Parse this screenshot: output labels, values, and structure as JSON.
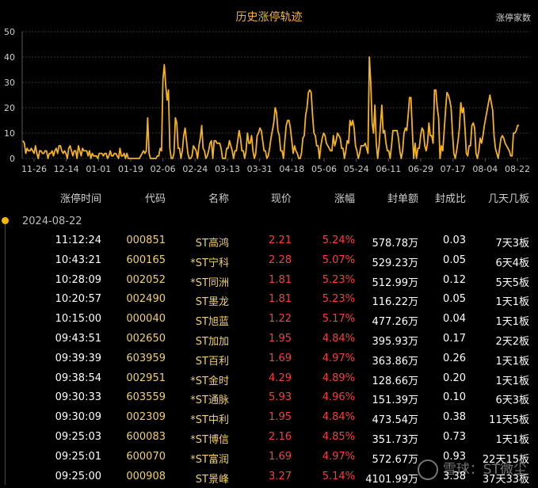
{
  "chart": {
    "title": "历史涨停轨迹",
    "legend_label": "涨停家数"
  },
  "chart_data": {
    "type": "line",
    "title": "历史涨停轨迹",
    "ylim": [
      0,
      50
    ],
    "y_ticks": [
      0,
      10,
      20,
      30,
      40,
      50
    ],
    "x_tick_labels": [
      "11-26",
      "12-14",
      "01-01",
      "01-19",
      "02-06",
      "02-24",
      "03-13",
      "03-31",
      "04-18",
      "05-06",
      "05-24",
      "06-11",
      "06-29",
      "07-17",
      "08-04",
      "08-22"
    ],
    "series": [
      {
        "values": [
          7,
          6,
          2,
          4,
          3,
          3,
          4,
          3,
          2,
          5,
          2,
          0,
          3,
          3,
          2,
          2,
          3,
          3,
          0,
          2,
          2,
          3,
          1,
          3,
          4,
          2,
          5,
          5,
          3,
          2,
          3,
          2,
          0,
          4,
          5,
          3,
          1,
          3,
          3,
          0,
          5,
          3,
          1,
          4,
          3,
          3,
          3,
          1,
          3,
          0,
          2,
          1,
          1,
          1,
          0,
          2,
          2,
          2,
          1,
          2,
          2,
          0,
          1,
          3,
          1,
          1,
          2,
          2,
          1,
          0,
          4,
          1,
          1,
          2,
          0,
          2,
          0,
          0,
          0,
          0,
          0,
          0,
          0,
          0,
          0,
          1,
          2,
          3,
          2,
          3,
          16,
          2,
          0,
          0,
          0,
          0,
          0,
          1,
          1,
          4,
          3,
          31,
          37,
          29,
          23,
          27,
          4,
          0,
          0,
          2,
          16,
          14,
          4,
          4,
          0,
          3,
          9,
          12,
          7,
          2,
          0,
          0,
          1,
          5,
          4,
          3,
          0,
          5,
          8,
          13,
          4,
          3,
          0,
          1,
          3,
          6,
          7,
          0,
          7,
          7,
          6,
          6,
          6,
          4,
          0,
          0,
          0,
          4,
          4,
          7,
          5,
          3,
          0,
          3,
          3,
          7,
          11,
          8,
          3,
          3,
          0,
          3,
          10,
          6,
          6,
          9,
          3,
          0,
          2,
          9,
          10,
          12,
          11,
          7,
          3,
          3,
          0,
          1,
          4,
          8,
          11,
          14,
          20,
          18,
          11,
          9,
          3,
          3,
          0,
          7,
          13,
          15,
          15,
          12,
          7,
          2,
          5,
          3,
          2,
          0,
          0,
          2,
          8,
          9,
          17,
          20,
          26,
          27,
          26,
          17,
          10,
          9,
          5,
          5,
          0,
          5,
          8,
          10,
          9,
          6,
          5,
          4,
          3,
          3,
          9,
          5,
          7,
          10,
          9,
          8,
          4,
          4,
          0,
          3,
          7,
          6,
          15,
          13,
          15,
          12,
          5,
          3,
          0,
          2,
          5,
          5,
          5,
          6,
          4,
          2,
          40,
          30,
          14,
          10,
          21,
          6,
          0,
          5,
          13,
          21,
          10,
          11,
          6,
          3,
          3,
          0,
          5,
          11,
          11,
          11,
          11,
          8,
          3,
          0,
          3,
          10,
          12,
          11,
          17,
          24,
          24,
          11,
          0,
          6,
          0,
          4,
          4,
          9,
          12,
          11,
          5,
          3,
          6,
          14,
          9,
          9,
          6,
          27,
          27,
          20,
          16,
          0,
          5,
          3,
          11,
          19,
          26,
          25,
          23,
          20,
          10,
          2,
          0,
          3,
          7,
          12,
          22,
          18,
          20,
          12,
          2,
          1,
          5,
          5,
          13,
          14,
          12,
          2,
          0,
          3,
          8,
          6,
          9,
          13,
          16,
          19,
          22,
          25,
          22,
          19,
          9,
          4,
          2,
          0,
          4,
          8,
          9,
          8,
          6,
          5,
          4,
          3,
          1,
          1,
          10,
          10,
          11,
          13,
          13
        ]
      }
    ],
    "grid": true,
    "colors": {
      "line": "#f5b21b",
      "grid": "#3a3a3a",
      "axis_text": "#cfcfcf"
    }
  },
  "table": {
    "headers": [
      "涨停时间",
      "代码",
      "名称",
      "现价",
      "涨幅",
      "封单额",
      "封成比",
      "几天几板"
    ],
    "date": "2024-08-22",
    "rows": [
      {
        "time": "11:12:24",
        "code": "000851",
        "name": "ST高鸿",
        "price": "2.21",
        "pct": "5.24%",
        "amount": "578.78万",
        "ratio": "0.03",
        "streak": "7天3板"
      },
      {
        "time": "10:43:21",
        "code": "600165",
        "name": "*ST宁科",
        "price": "2.28",
        "pct": "5.07%",
        "amount": "529.23万",
        "ratio": "0.05",
        "streak": "6天4板"
      },
      {
        "time": "10:28:09",
        "code": "002052",
        "name": "*ST同洲",
        "price": "1.81",
        "pct": "5.23%",
        "amount": "512.99万",
        "ratio": "0.12",
        "streak": "5天5板"
      },
      {
        "time": "10:20:57",
        "code": "002490",
        "name": "ST墨龙",
        "price": "1.81",
        "pct": "5.23%",
        "amount": "116.22万",
        "ratio": "0.05",
        "streak": "1天1板"
      },
      {
        "time": "10:15:00",
        "code": "000040",
        "name": "ST旭蓝",
        "price": "1.22",
        "pct": "5.17%",
        "amount": "477.26万",
        "ratio": "0.04",
        "streak": "1天1板"
      },
      {
        "time": "09:43:51",
        "code": "002650",
        "name": "ST加加",
        "price": "1.95",
        "pct": "4.84%",
        "amount": "395.93万",
        "ratio": "0.17",
        "streak": "2天2板"
      },
      {
        "time": "09:39:39",
        "code": "603959",
        "name": "ST百利",
        "price": "1.69",
        "pct": "4.97%",
        "amount": "363.86万",
        "ratio": "0.26",
        "streak": "1天1板"
      },
      {
        "time": "09:38:54",
        "code": "002951",
        "name": "*ST金时",
        "price": "4.29",
        "pct": "4.89%",
        "amount": "128.66万",
        "ratio": "0.20",
        "streak": "1天1板"
      },
      {
        "time": "09:30:33",
        "code": "603559",
        "name": "*ST通脉",
        "price": "5.93",
        "pct": "4.96%",
        "amount": "151.39万",
        "ratio": "0.10",
        "streak": "6天3板"
      },
      {
        "time": "09:30:09",
        "code": "002309",
        "name": "*ST中利",
        "price": "1.95",
        "pct": "4.84%",
        "amount": "473.54万",
        "ratio": "0.38",
        "streak": "11天5板"
      },
      {
        "time": "09:25:03",
        "code": "600083",
        "name": "*ST博信",
        "price": "2.16",
        "pct": "4.85%",
        "amount": "351.73万",
        "ratio": "0.73",
        "streak": "1天1板"
      },
      {
        "time": "09:25:01",
        "code": "600070",
        "name": "*ST富润",
        "price": "1.69",
        "pct": "4.97%",
        "amount": "572.67万",
        "ratio": "0.93",
        "streak": "22天15板"
      },
      {
        "time": "09:25:00",
        "code": "000908",
        "name": "ST景峰",
        "price": "3.27",
        "pct": "5.14%",
        "amount": "4101.99万",
        "ratio": "3.38",
        "streak": "37天33板"
      }
    ]
  },
  "watermark": {
    "text": "雪球：ST微尘"
  }
}
